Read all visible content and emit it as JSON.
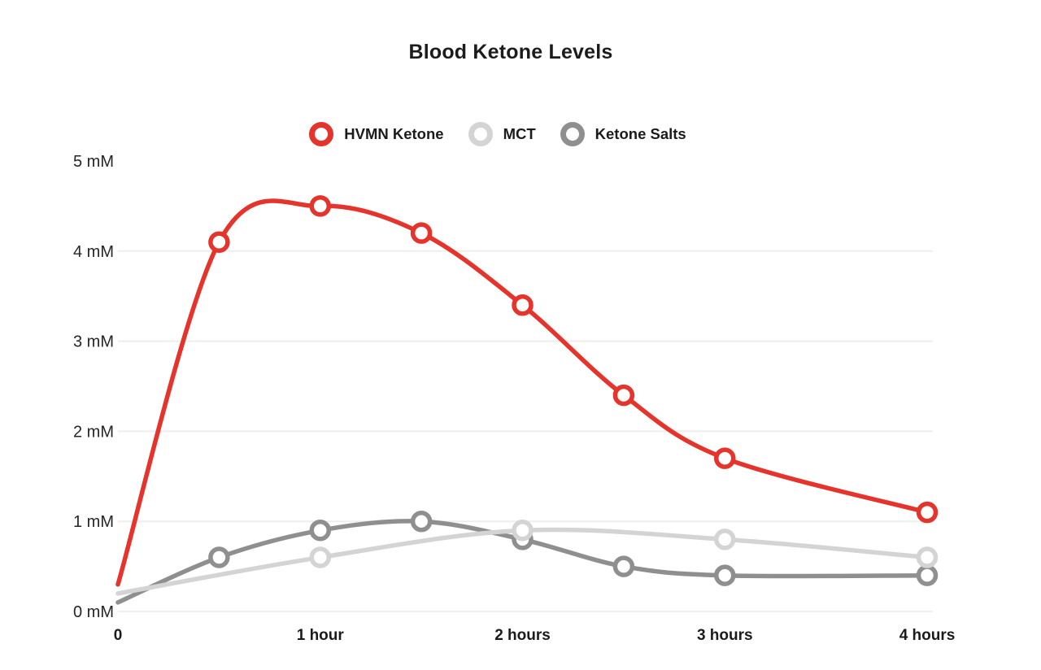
{
  "chart_data": {
    "type": "line",
    "title": "Blood Ketone Levels",
    "xlabel": "",
    "ylabel": "",
    "xlim": [
      0,
      4
    ],
    "ylim": [
      0,
      5
    ],
    "grid": {
      "horizontal_mM": [
        0,
        1,
        2,
        3,
        4
      ],
      "vertical": false
    },
    "legend_position": "top",
    "x_ticks": [
      {
        "value": 0,
        "label": "0"
      },
      {
        "value": 1,
        "label": "1 hour"
      },
      {
        "value": 2,
        "label": "2 hours"
      },
      {
        "value": 3,
        "label": "3 hours"
      },
      {
        "value": 4,
        "label": "4 hours"
      }
    ],
    "y_ticks": [
      {
        "value": 0,
        "label": "0 mM"
      },
      {
        "value": 1,
        "label": "1 mM"
      },
      {
        "value": 2,
        "label": "2 mM"
      },
      {
        "value": 3,
        "label": "3 mM"
      },
      {
        "value": 4,
        "label": "4 mM"
      },
      {
        "value": 5,
        "label": "5 mM"
      }
    ],
    "series": [
      {
        "name": "HVMN Ketone",
        "color": "#e4342b",
        "points": [
          {
            "x": 0,
            "y": 0.3,
            "marker": false
          },
          {
            "x": 0.5,
            "y": 4.1,
            "marker": true
          },
          {
            "x": 1,
            "y": 4.5,
            "marker": true
          },
          {
            "x": 1.5,
            "y": 4.2,
            "marker": true
          },
          {
            "x": 2,
            "y": 3.4,
            "marker": true
          },
          {
            "x": 2.5,
            "y": 2.4,
            "marker": true
          },
          {
            "x": 3,
            "y": 1.7,
            "marker": true
          },
          {
            "x": 4,
            "y": 1.1,
            "marker": true
          }
        ]
      },
      {
        "name": "MCT",
        "color": "#d4d4d4",
        "points": [
          {
            "x": 0,
            "y": 0.2,
            "marker": false
          },
          {
            "x": 1,
            "y": 0.6,
            "marker": true
          },
          {
            "x": 2,
            "y": 0.9,
            "marker": true
          },
          {
            "x": 3,
            "y": 0.8,
            "marker": true
          },
          {
            "x": 4,
            "y": 0.6,
            "marker": true
          }
        ]
      },
      {
        "name": "Ketone Salts",
        "color": "#8f8f8f",
        "points": [
          {
            "x": 0,
            "y": 0.1,
            "marker": false
          },
          {
            "x": 0.5,
            "y": 0.6,
            "marker": true
          },
          {
            "x": 1,
            "y": 0.9,
            "marker": true
          },
          {
            "x": 1.5,
            "y": 1.0,
            "marker": true
          },
          {
            "x": 2,
            "y": 0.8,
            "marker": true
          },
          {
            "x": 2.5,
            "y": 0.5,
            "marker": true
          },
          {
            "x": 3,
            "y": 0.4,
            "marker": true
          },
          {
            "x": 4,
            "y": 0.4,
            "marker": true
          }
        ]
      }
    ],
    "colors": {
      "hvmn_red": "#e4342b",
      "mct_gray": "#d4d4d4",
      "salts_gray": "#8f8f8f",
      "gridline": "#f0eeea",
      "text": "#1b1b1b"
    }
  }
}
